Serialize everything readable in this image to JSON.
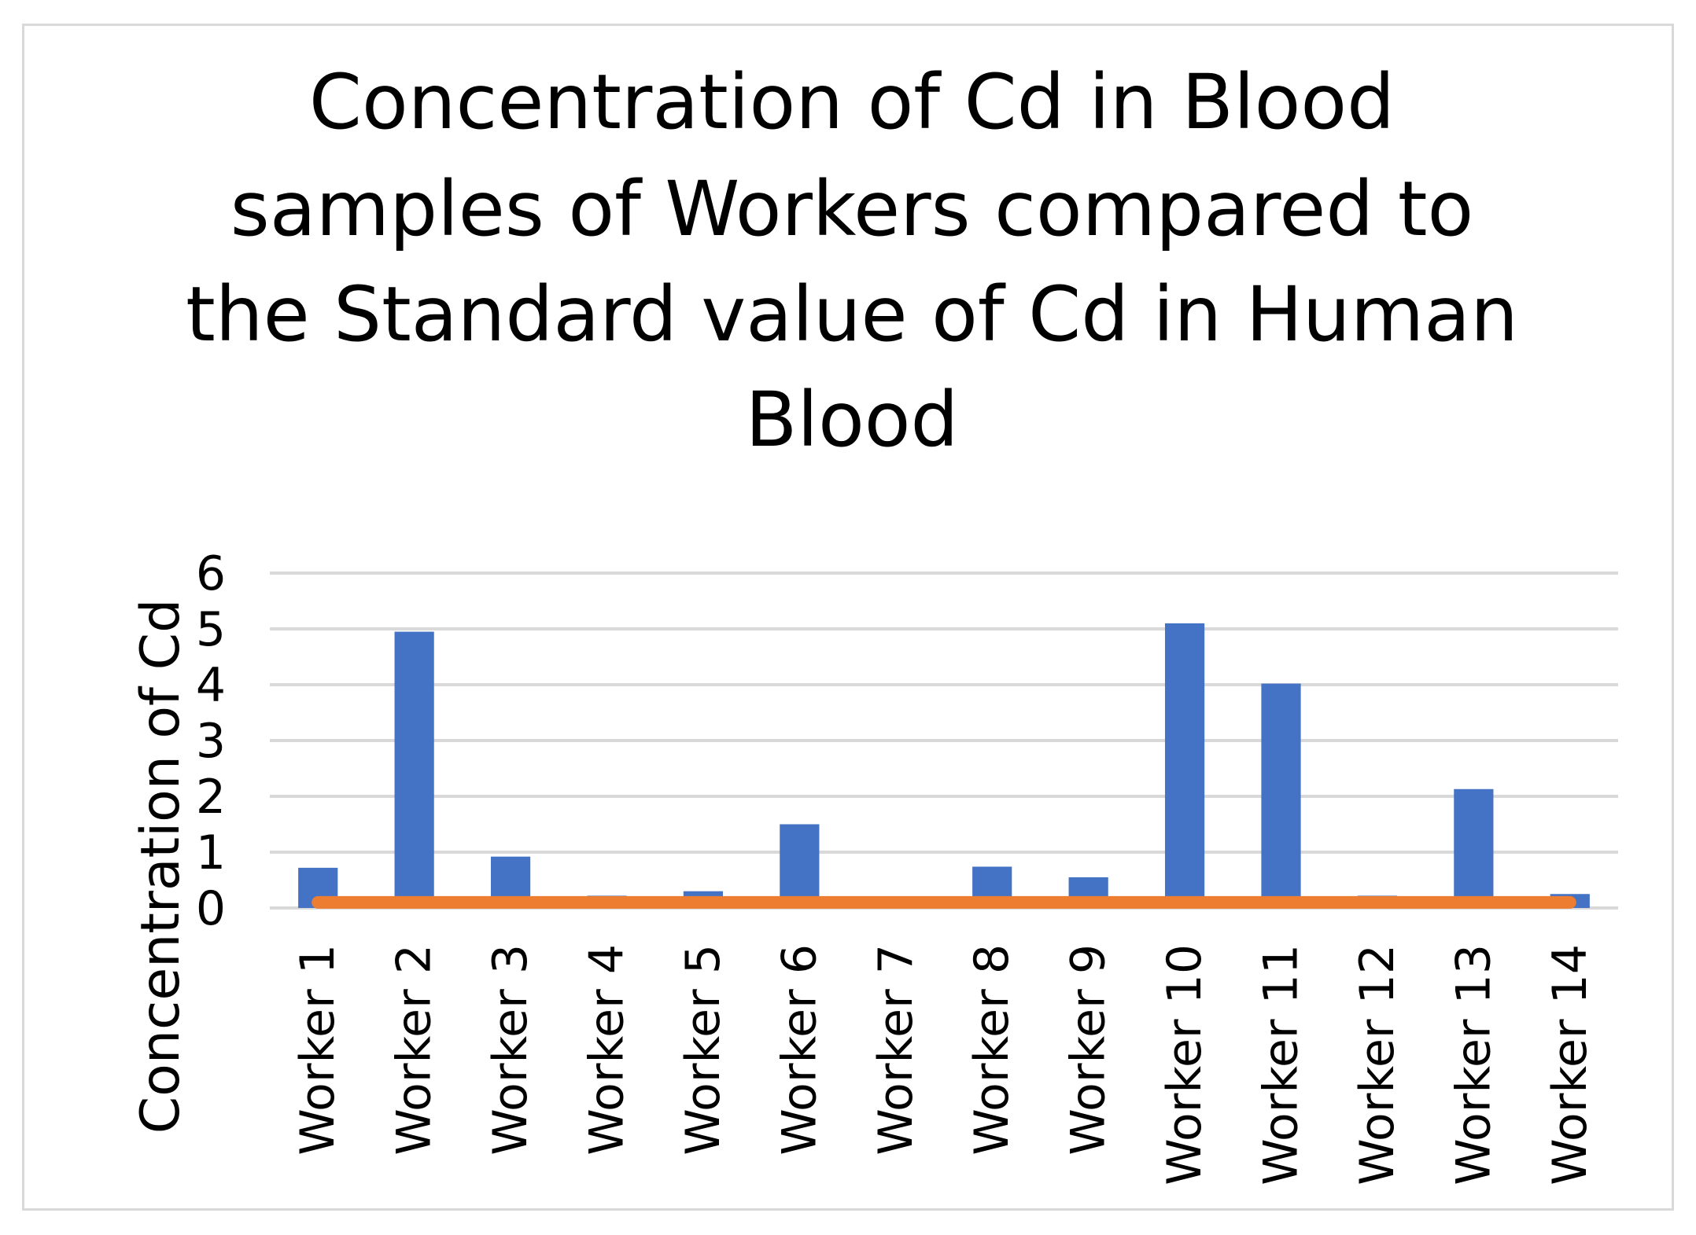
{
  "chart_data": {
    "type": "bar",
    "title": "Concentration of Cd in Blood samples of Workers compared to the Standard value of Cd in Human Blood",
    "title_lines": [
      "Concentration of Cd in Blood",
      "samples of Workers compared to",
      "the Standard value of Cd in Human",
      "Blood"
    ],
    "xlabel": "",
    "ylabel": "Concentration of Cd",
    "ylim": [
      0,
      6
    ],
    "yticks": [
      "0",
      "1",
      "2",
      "3",
      "4",
      "5",
      "6"
    ],
    "grid": true,
    "legend": "none",
    "categories": [
      "Worker 1",
      "Worker 2",
      "Worker 3",
      "Worker 4",
      "Worker 5",
      "Worker 6",
      "Worker 7",
      "Worker 8",
      "Worker 9",
      "Worker 10",
      "Worker 11",
      "Worker 12",
      "Worker 13",
      "Worker 14"
    ],
    "series": [
      {
        "type": "bar",
        "color": "#4472c4",
        "values": [
          0.72,
          4.95,
          0.92,
          0.22,
          0.3,
          1.5,
          0.0,
          0.74,
          0.55,
          5.1,
          4.02,
          0.22,
          2.13,
          0.25
        ]
      },
      {
        "type": "line",
        "color": "#ed7d31",
        "values": [
          0.1,
          0.1,
          0.1,
          0.1,
          0.1,
          0.1,
          0.1,
          0.1,
          0.1,
          0.1,
          0.1,
          0.1,
          0.1,
          0.1
        ]
      }
    ]
  }
}
